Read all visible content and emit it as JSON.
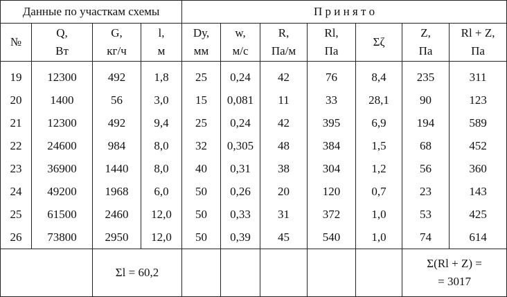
{
  "table": {
    "group_headers": [
      "Данные по участкам схемы",
      "П р и н я т о"
    ],
    "columns": [
      {
        "name": "№"
      },
      {
        "name": "Q,",
        "unit": "Вт"
      },
      {
        "name": "G,",
        "unit": "кг/ч"
      },
      {
        "name": "l,",
        "unit": "м"
      },
      {
        "name": "Dу,",
        "unit": "мм"
      },
      {
        "name": "w,",
        "unit": "м/с"
      },
      {
        "name": "R,",
        "unit": "Па/м"
      },
      {
        "name": "Rl,",
        "unit": "Па"
      },
      {
        "name": "Σζ"
      },
      {
        "name": "Z,",
        "unit": "Па"
      },
      {
        "name": "Rl + Z,",
        "unit": "Па"
      }
    ],
    "rows": [
      [
        "19",
        "12300",
        "492",
        "1,8",
        "25",
        "0,24",
        "42",
        "76",
        "8,4",
        "235",
        "311"
      ],
      [
        "20",
        "1400",
        "56",
        "3,0",
        "15",
        "0,081",
        "11",
        "33",
        "28,1",
        "90",
        "123"
      ],
      [
        "21",
        "12300",
        "492",
        "9,4",
        "25",
        "0,24",
        "42",
        "395",
        "6,9",
        "194",
        "589"
      ],
      [
        "22",
        "24600",
        "984",
        "8,0",
        "32",
        "0,305",
        "48",
        "384",
        "1,5",
        "68",
        "452"
      ],
      [
        "23",
        "36900",
        "1440",
        "8,0",
        "40",
        "0,31",
        "38",
        "304",
        "1,2",
        "56",
        "360"
      ],
      [
        "24",
        "49200",
        "1968",
        "6,0",
        "50",
        "0,26",
        "20",
        "120",
        "0,7",
        "23",
        "143"
      ],
      [
        "25",
        "61500",
        "2460",
        "12,0",
        "50",
        "0,33",
        "31",
        "372",
        "1,0",
        "53",
        "425"
      ],
      [
        "26",
        "73800",
        "2950",
        "12,0",
        "50",
        "0,39",
        "45",
        "540",
        "1,0",
        "74",
        "614"
      ]
    ],
    "footer": {
      "sum_l": "Σl = 60,2",
      "sum_rlz": [
        "Σ(Rl + Z) =",
        "= 3017"
      ]
    }
  }
}
